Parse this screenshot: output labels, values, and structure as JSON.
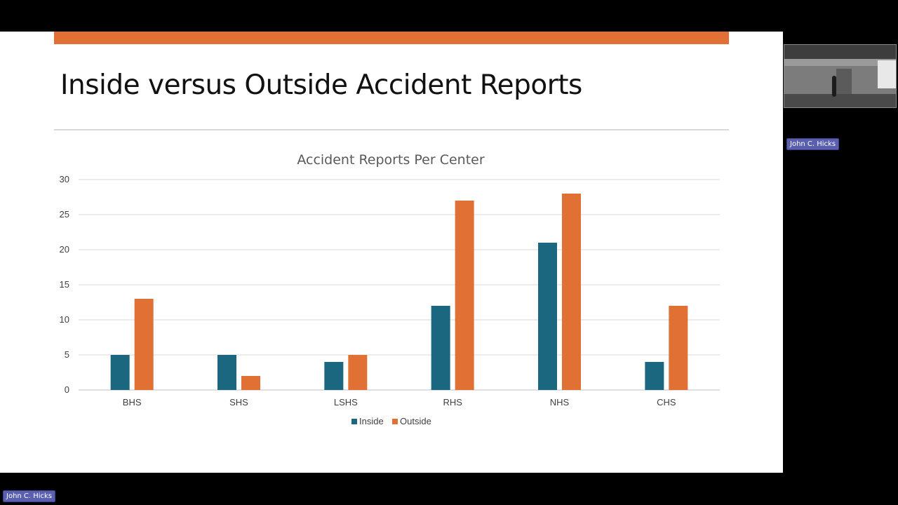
{
  "slide": {
    "title": "Inside versus Outside Accident Reports"
  },
  "colors": {
    "accent": "#e07034",
    "inside": "#1c6780",
    "outside": "#e07034",
    "name_tag": "#5a5fb0"
  },
  "participants": {
    "right_panel_name": "John C. Hicks",
    "bottom_name": "John C. Hicks"
  },
  "chart_data": {
    "type": "bar",
    "title": "Accident Reports Per Center",
    "categories": [
      "BHS",
      "SHS",
      "LSHS",
      "RHS",
      "NHS",
      "CHS"
    ],
    "series": [
      {
        "name": "Inside",
        "values": [
          5,
          5,
          4,
          12,
          21,
          4
        ]
      },
      {
        "name": "Outside",
        "values": [
          13,
          2,
          5,
          27,
          28,
          12
        ]
      }
    ],
    "y_ticks": [
      0,
      5,
      10,
      15,
      20,
      25,
      30
    ],
    "ylim": [
      0,
      30
    ],
    "grid": true,
    "legend": "bottom"
  }
}
